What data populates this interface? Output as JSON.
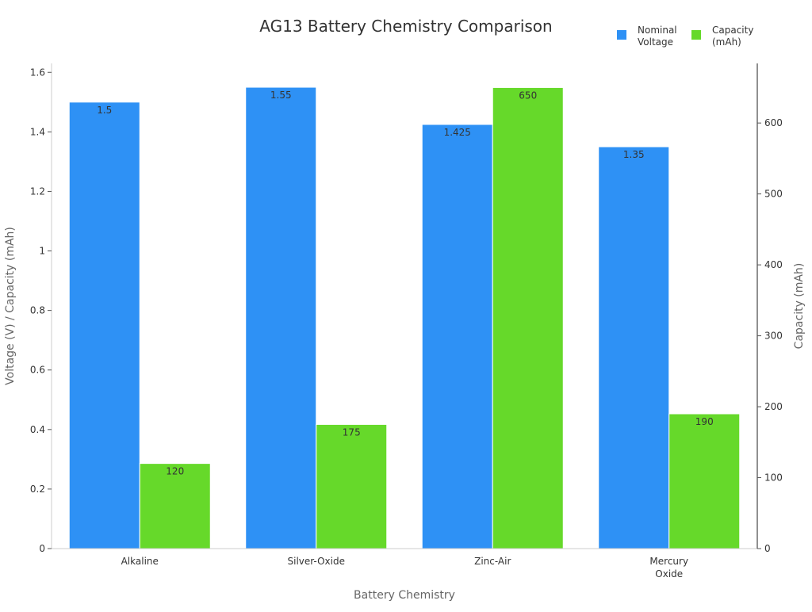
{
  "chart_data": {
    "type": "bar",
    "title": "AG13 Battery Chemistry Comparison",
    "xlabel": "Battery Chemistry",
    "ylabel": "Voltage (V) / Capacity (mAh)",
    "y2label": "Capacity (mAh)",
    "categories": [
      [
        "Alkaline"
      ],
      [
        "Silver-Oxide"
      ],
      [
        "Zinc-Air"
      ],
      [
        "Mercury",
        "Oxide"
      ]
    ],
    "ylim": [
      0,
      1.63
    ],
    "y2lim": [
      0,
      684
    ],
    "yticks": [
      {
        "value": 0,
        "label": "0"
      },
      {
        "value": 0.2,
        "label": "0.2"
      },
      {
        "value": 0.4,
        "label": "0.4"
      },
      {
        "value": 0.6,
        "label": "0.6"
      },
      {
        "value": 0.8,
        "label": "0.8"
      },
      {
        "value": 1,
        "label": "1"
      },
      {
        "value": 1.2,
        "label": "1.2"
      },
      {
        "value": 1.4,
        "label": "1.4"
      },
      {
        "value": 1.6,
        "label": "1.6"
      }
    ],
    "y2ticks": [
      {
        "value": 0,
        "label": "0"
      },
      {
        "value": 100,
        "label": "100"
      },
      {
        "value": 200,
        "label": "200"
      },
      {
        "value": 300,
        "label": "300"
      },
      {
        "value": 400,
        "label": "400"
      },
      {
        "value": 500,
        "label": "500"
      },
      {
        "value": 600,
        "label": "600"
      }
    ],
    "series": [
      {
        "name": [
          "Nominal",
          "Voltage"
        ],
        "axis": "left",
        "color": "#2e91f5",
        "values": [
          1.5,
          1.55,
          1.425,
          1.35
        ],
        "labels": [
          "1.5",
          "1.55",
          "1.425",
          "1.35"
        ]
      },
      {
        "name": [
          "Capacity",
          "(mAh)"
        ],
        "axis": "right",
        "color": "#66d92a",
        "values": [
          120,
          175,
          650,
          190
        ],
        "labels": [
          "120",
          "175",
          "650",
          "190"
        ]
      }
    ],
    "legend": "top-right",
    "grid": false
  }
}
